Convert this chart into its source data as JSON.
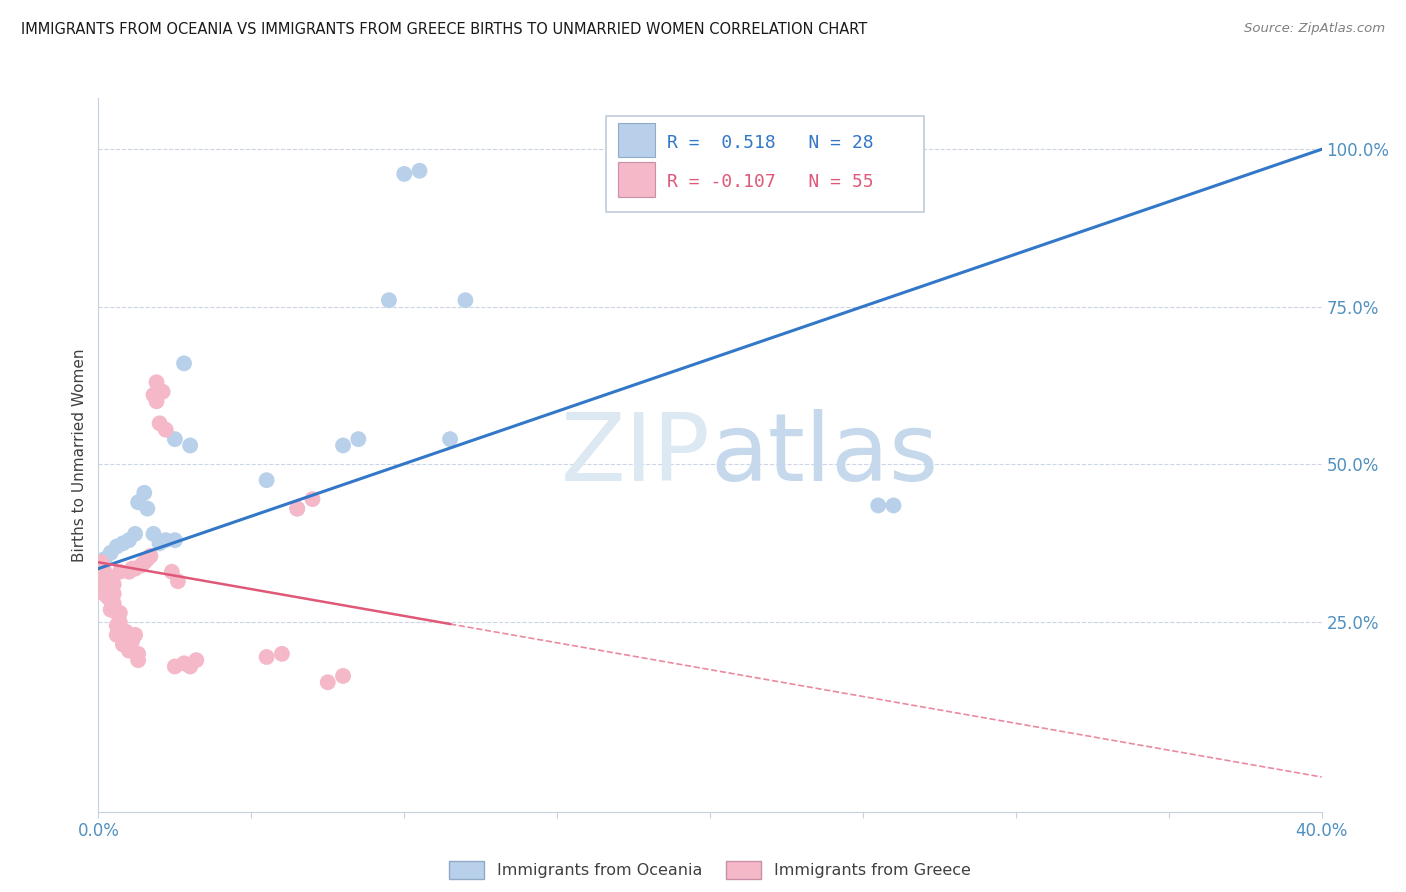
{
  "title": "IMMIGRANTS FROM OCEANIA VS IMMIGRANTS FROM GREECE BIRTHS TO UNMARRIED WOMEN CORRELATION CHART",
  "source": "Source: ZipAtlas.com",
  "ylabel": "Births to Unmarried Women",
  "xmin": 0.0,
  "xmax": 0.4,
  "ymin": -0.05,
  "ymax": 1.08,
  "right_yticks": [
    0.25,
    0.5,
    0.75,
    1.0
  ],
  "right_yticklabels": [
    "25.0%",
    "50.0%",
    "75.0%",
    "100.0%"
  ],
  "xticks": [
    0.0,
    0.05,
    0.1,
    0.15,
    0.2,
    0.25,
    0.3,
    0.35,
    0.4
  ],
  "xticklabels": [
    "0.0%",
    "",
    "",
    "",
    "",
    "",
    "",
    "",
    "40.0%"
  ],
  "watermark_zip": "ZIP",
  "watermark_atlas": "atlas",
  "blue_color": "#b8d0ea",
  "pink_color": "#f5b8c8",
  "blue_line_color": "#3378c8",
  "pink_line_color": "#e05878",
  "blue_line_intercept": 0.335,
  "blue_line_slope": 1.66,
  "pink_line_intercept": 0.345,
  "pink_line_slope": -0.85,
  "oceania_x": [
    0.001,
    0.002,
    0.004,
    0.006,
    0.008,
    0.01,
    0.012,
    0.013,
    0.015,
    0.016,
    0.018,
    0.02,
    0.022,
    0.025,
    0.025,
    0.028,
    0.03,
    0.055,
    0.065,
    0.08,
    0.085,
    0.095,
    0.1,
    0.105,
    0.115,
    0.12,
    0.255,
    0.26
  ],
  "oceania_y": [
    0.34,
    0.35,
    0.36,
    0.37,
    0.375,
    0.38,
    0.39,
    0.44,
    0.455,
    0.43,
    0.39,
    0.375,
    0.38,
    0.54,
    0.38,
    0.66,
    0.53,
    0.475,
    0.43,
    0.53,
    0.54,
    0.76,
    0.96,
    0.965,
    0.54,
    0.76,
    0.435,
    0.435
  ],
  "greece_x": [
    0.001,
    0.001,
    0.002,
    0.002,
    0.002,
    0.003,
    0.003,
    0.003,
    0.003,
    0.004,
    0.004,
    0.004,
    0.005,
    0.005,
    0.005,
    0.006,
    0.006,
    0.006,
    0.007,
    0.007,
    0.007,
    0.008,
    0.008,
    0.009,
    0.01,
    0.01,
    0.01,
    0.011,
    0.011,
    0.012,
    0.012,
    0.013,
    0.013,
    0.014,
    0.015,
    0.016,
    0.017,
    0.018,
    0.019,
    0.019,
    0.02,
    0.021,
    0.022,
    0.024,
    0.025,
    0.026,
    0.028,
    0.03,
    0.032,
    0.055,
    0.06,
    0.065,
    0.07,
    0.075,
    0.08
  ],
  "greece_y": [
    0.33,
    0.345,
    0.295,
    0.31,
    0.33,
    0.305,
    0.315,
    0.32,
    0.29,
    0.27,
    0.285,
    0.305,
    0.28,
    0.295,
    0.31,
    0.23,
    0.245,
    0.265,
    0.25,
    0.265,
    0.33,
    0.215,
    0.23,
    0.235,
    0.205,
    0.22,
    0.33,
    0.22,
    0.335,
    0.23,
    0.335,
    0.19,
    0.2,
    0.34,
    0.345,
    0.35,
    0.355,
    0.61,
    0.63,
    0.6,
    0.565,
    0.615,
    0.555,
    0.33,
    0.18,
    0.315,
    0.185,
    0.18,
    0.19,
    0.195,
    0.2,
    0.43,
    0.445,
    0.155,
    0.165
  ]
}
